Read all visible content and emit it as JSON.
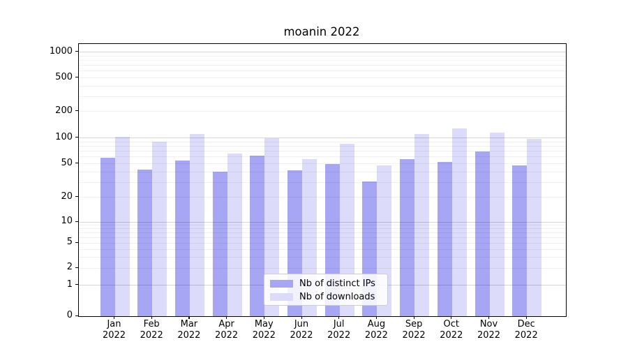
{
  "title": "moanin 2022",
  "chart_data": {
    "type": "bar",
    "title": "moanin 2022",
    "categories": [
      "Jan 2022",
      "Feb 2022",
      "Mar 2022",
      "Apr 2022",
      "May 2022",
      "Jun 2022",
      "Jul 2022",
      "Aug 2022",
      "Sep 2022",
      "Oct 2022",
      "Nov 2022",
      "Dec 2022"
    ],
    "months": [
      "Jan",
      "Feb",
      "Mar",
      "Apr",
      "May",
      "Jun",
      "Jul",
      "Aug",
      "Sep",
      "Oct",
      "Nov",
      "Dec"
    ],
    "year_line": "2022",
    "series": [
      {
        "name": "Nb of distinct IPs",
        "color": "#a6a6f4",
        "values": [
          59,
          43,
          55,
          40,
          62,
          42,
          50,
          31,
          57,
          53,
          69,
          48
        ]
      },
      {
        "name": "Nb of downloads",
        "color": "#dcdcfa",
        "values": [
          104,
          91,
          110,
          66,
          100,
          57,
          85,
          48,
          110,
          128,
          116,
          98
        ]
      }
    ],
    "yscale": "symlog",
    "yticks": [
      0,
      1,
      2,
      5,
      10,
      20,
      50,
      100,
      200,
      500,
      1000
    ],
    "ylim": [
      0,
      1300
    ],
    "xlabel": "",
    "ylabel": "",
    "grid": true,
    "legend": {
      "labels": [
        "Nb of distinct IPs",
        "Nb of downloads"
      ],
      "position": "lower center"
    }
  },
  "colors": {
    "ips_bar": "#a6a6f4",
    "downloads_bar": "#dcdcfa",
    "grid_major": "rgba(0,0,0,0.16)",
    "grid_minor": "rgba(0,0,0,0.055)",
    "spine": "#000000",
    "legend_border": "#cccccc"
  }
}
